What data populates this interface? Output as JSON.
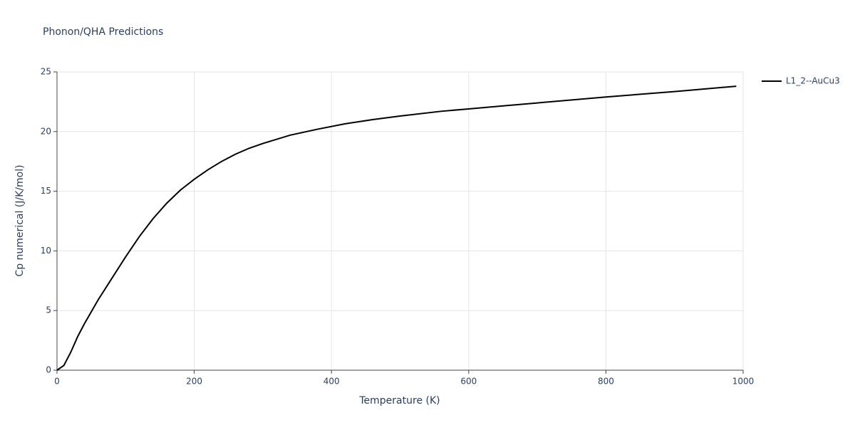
{
  "chart_data": {
    "type": "line",
    "title": "Phonon/QHA Predictions",
    "x_label": "Temperature (K)",
    "y_label": "Cp numerical (J/K/mol)",
    "x": [
      0,
      10,
      20,
      30,
      40,
      50,
      60,
      80,
      100,
      120,
      140,
      160,
      180,
      200,
      220,
      240,
      260,
      280,
      300,
      340,
      380,
      420,
      460,
      500,
      560,
      600,
      650,
      700,
      800,
      900,
      990
    ],
    "series": [
      {
        "name": "L1_2--AuCu3",
        "color": "#000000",
        "values": [
          0,
          0.4,
          1.5,
          2.8,
          3.9,
          4.9,
          5.9,
          7.7,
          9.5,
          11.2,
          12.7,
          14.0,
          15.1,
          16.0,
          16.8,
          17.5,
          18.1,
          18.6,
          19.0,
          19.7,
          20.2,
          20.65,
          21.0,
          21.3,
          21.7,
          21.9,
          22.15,
          22.4,
          22.9,
          23.35,
          23.8
        ]
      }
    ],
    "xlim": [
      0,
      1000
    ],
    "xticks": [
      0,
      200,
      400,
      600,
      800,
      1000
    ],
    "ylim": [
      0,
      25
    ],
    "yticks": [
      0,
      5,
      10,
      15,
      20,
      25
    ],
    "grid": true,
    "legend": "right"
  }
}
